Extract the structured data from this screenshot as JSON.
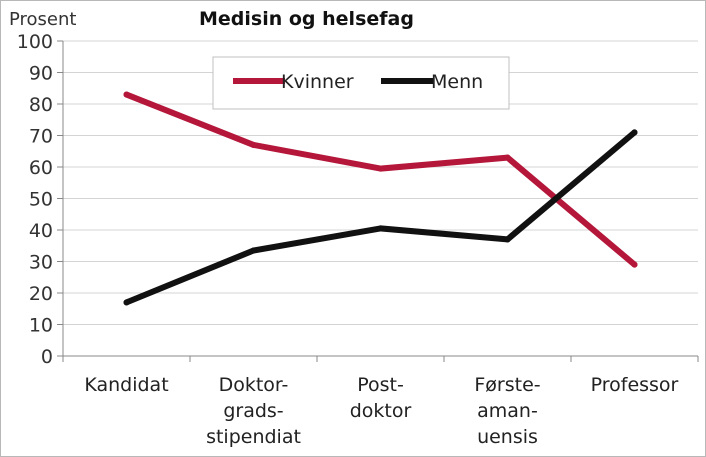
{
  "chart_data": {
    "type": "line",
    "title": "Medisin og helsefag",
    "ylabel": "Prosent",
    "xlabel": "",
    "ylim": [
      0,
      100
    ],
    "ytick_step": 10,
    "grid": "horizontal",
    "legend_position": "top-center",
    "categories": [
      [
        "Kandidat"
      ],
      [
        "Doktor-",
        "grads-",
        "stipendiat"
      ],
      [
        "Post-",
        "doktor"
      ],
      [
        "Første-",
        "aman-",
        "uensis"
      ],
      [
        "Professor"
      ]
    ],
    "series": [
      {
        "name": "Kvinner",
        "color": "#b5173a",
        "values": [
          83,
          67,
          59.5,
          63,
          29
        ]
      },
      {
        "name": "Menn",
        "color": "#111111",
        "values": [
          17,
          33.5,
          40.5,
          37,
          71
        ]
      }
    ]
  }
}
